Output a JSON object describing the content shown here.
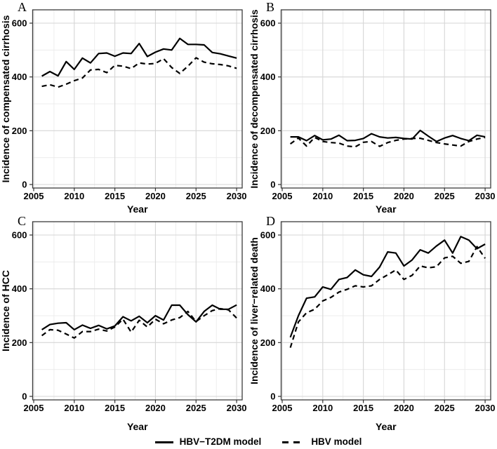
{
  "figure": {
    "line_color": "#000000",
    "grid_major_color": "#d6d6d6",
    "grid_minor_color": "#e9e9e9",
    "border_color": "#3c3c3c",
    "tick_color": "#333333",
    "legend": {
      "items": [
        {
          "label": "HBV−T2DM model",
          "line_style": "solid"
        },
        {
          "label": "HBV model",
          "line_style": "dashed"
        }
      ]
    }
  },
  "chart_data": [
    {
      "type": "line",
      "panel_label": "A",
      "ylabel": "Incidence of compensated cirrhosis",
      "xlabel": "Year",
      "legend_position": "bottom-shared",
      "grid": true,
      "xlim": [
        2004.8,
        2030.8
      ],
      "ylim": [
        0,
        600
      ],
      "xticks": [
        2005,
        2010,
        2015,
        2020,
        2025,
        2030
      ],
      "yticks": [
        0,
        200,
        400,
        600
      ],
      "xticks_minor": [
        2007.5,
        2012.5,
        2017.5,
        2022.5,
        2027.5
      ],
      "yticks_minor": [
        100,
        300,
        500
      ],
      "x": [
        2006,
        2007,
        2008,
        2009,
        2010,
        2011,
        2012,
        2013,
        2014,
        2015,
        2016,
        2017,
        2018,
        2019,
        2020,
        2021,
        2022,
        2023,
        2024,
        2025,
        2026,
        2027,
        2028,
        2029,
        2030
      ],
      "series": [
        {
          "name": "HBV−T2DM model",
          "style": "solid",
          "values": [
            403,
            420,
            404,
            457,
            428,
            470,
            452,
            487,
            489,
            477,
            489,
            487,
            524,
            476,
            492,
            504,
            500,
            543,
            521,
            521,
            519,
            491,
            486,
            478,
            470
          ]
        },
        {
          "name": "HBV model",
          "style": "dashed",
          "values": [
            365,
            371,
            362,
            373,
            386,
            396,
            426,
            428,
            416,
            443,
            440,
            431,
            452,
            448,
            450,
            468,
            435,
            413,
            440,
            471,
            455,
            449,
            446,
            441,
            432
          ]
        }
      ]
    },
    {
      "type": "line",
      "panel_label": "B",
      "ylabel": "Incidence of decompensated cirrhosis",
      "xlabel": "Year",
      "legend_position": "bottom-shared",
      "grid": true,
      "xlim": [
        2004.8,
        2030.8
      ],
      "ylim": [
        0,
        600
      ],
      "xticks": [
        2005,
        2010,
        2015,
        2020,
        2025,
        2030
      ],
      "yticks": [
        0,
        200,
        400,
        600
      ],
      "xticks_minor": [
        2007.5,
        2012.5,
        2017.5,
        2022.5,
        2027.5
      ],
      "yticks_minor": [
        100,
        300,
        500
      ],
      "x": [
        2006,
        2007,
        2008,
        2009,
        2010,
        2011,
        2012,
        2013,
        2014,
        2015,
        2016,
        2017,
        2018,
        2019,
        2020,
        2021,
        2022,
        2023,
        2024,
        2025,
        2026,
        2027,
        2028,
        2029,
        2030
      ],
      "series": [
        {
          "name": "HBV−T2DM model",
          "style": "solid",
          "values": [
            177,
            177,
            163,
            182,
            166,
            169,
            183,
            163,
            164,
            171,
            189,
            177,
            173,
            175,
            171,
            169,
            201,
            180,
            160,
            173,
            182,
            171,
            163,
            183,
            177
          ]
        },
        {
          "name": "HBV model",
          "style": "dashed",
          "values": [
            151,
            173,
            143,
            175,
            160,
            156,
            154,
            143,
            140,
            157,
            160,
            142,
            156,
            164,
            169,
            171,
            172,
            164,
            156,
            151,
            147,
            143,
            160,
            169,
            175
          ]
        }
      ]
    },
    {
      "type": "line",
      "panel_label": "C",
      "ylabel": "Incidence of HCC",
      "xlabel": "Year",
      "legend_position": "bottom-shared",
      "grid": true,
      "xlim": [
        2004.8,
        2030.8
      ],
      "ylim": [
        0,
        600
      ],
      "xticks": [
        2005,
        2010,
        2015,
        2020,
        2025,
        2030
      ],
      "yticks": [
        0,
        200,
        400,
        600
      ],
      "xticks_minor": [
        2007.5,
        2012.5,
        2017.5,
        2022.5,
        2027.5
      ],
      "yticks_minor": [
        100,
        300,
        500
      ],
      "x": [
        2006,
        2007,
        2008,
        2009,
        2010,
        2011,
        2012,
        2013,
        2014,
        2015,
        2016,
        2017,
        2018,
        2019,
        2020,
        2021,
        2022,
        2023,
        2024,
        2025,
        2026,
        2027,
        2028,
        2029,
        2030
      ],
      "series": [
        {
          "name": "HBV−T2DM model",
          "style": "solid",
          "values": [
            248,
            267,
            272,
            274,
            248,
            265,
            253,
            264,
            251,
            262,
            296,
            281,
            298,
            274,
            300,
            284,
            339,
            339,
            304,
            277,
            316,
            339,
            324,
            324,
            340
          ]
        },
        {
          "name": "HBV model",
          "style": "dashed",
          "values": [
            226,
            248,
            246,
            232,
            217,
            241,
            241,
            250,
            243,
            258,
            287,
            239,
            283,
            258,
            287,
            270,
            284,
            293,
            316,
            278,
            300,
            319,
            326,
            322,
            291
          ]
        }
      ]
    },
    {
      "type": "line",
      "panel_label": "D",
      "ylabel": "Incidence of liver−related death",
      "xlabel": "Year",
      "legend_position": "bottom-shared",
      "grid": true,
      "xlim": [
        2004.8,
        2030.8
      ],
      "ylim": [
        0,
        600
      ],
      "xticks": [
        2005,
        2010,
        2015,
        2020,
        2025,
        2030
      ],
      "yticks": [
        0,
        200,
        400,
        600
      ],
      "xticks_minor": [
        2007.5,
        2012.5,
        2017.5,
        2022.5,
        2027.5
      ],
      "yticks_minor": [
        100,
        300,
        500
      ],
      "x": [
        2006,
        2007,
        2008,
        2009,
        2010,
        2011,
        2012,
        2013,
        2014,
        2015,
        2016,
        2017,
        2018,
        2019,
        2020,
        2021,
        2022,
        2023,
        2024,
        2025,
        2026,
        2027,
        2028,
        2029,
        2030
      ],
      "series": [
        {
          "name": "HBV−T2DM model",
          "style": "solid",
          "values": [
            220,
            300,
            365,
            370,
            407,
            398,
            435,
            442,
            470,
            452,
            446,
            481,
            537,
            533,
            485,
            507,
            545,
            533,
            559,
            581,
            533,
            594,
            581,
            549,
            566
          ]
        },
        {
          "name": "HBV model",
          "style": "dashed",
          "values": [
            181,
            277,
            311,
            324,
            355,
            368,
            388,
            398,
            411,
            407,
            411,
            435,
            452,
            470,
            435,
            450,
            485,
            478,
            482,
            515,
            521,
            495,
            502,
            557,
            513
          ]
        }
      ]
    }
  ]
}
